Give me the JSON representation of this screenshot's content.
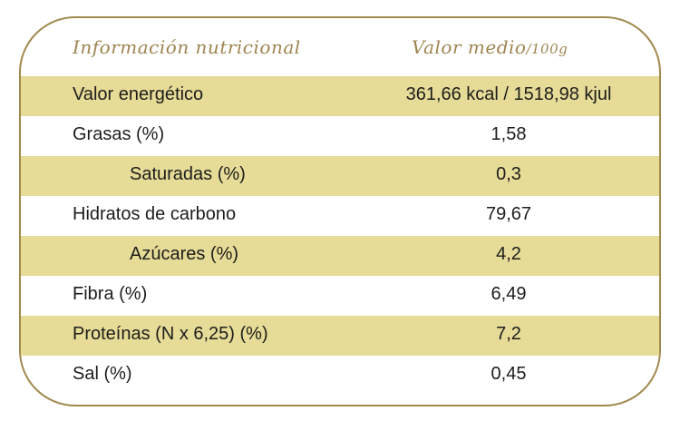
{
  "header": {
    "name_label": "Información nutricional",
    "value_label": "Valor medio",
    "value_unit": "/100g"
  },
  "rows": [
    {
      "name": "Valor energético",
      "value": "361,66 kcal / 1518,98 kjul"
    },
    {
      "name": "Grasas (%)",
      "value": "1,58"
    },
    {
      "name": "Saturadas (%)",
      "value": "0,3"
    },
    {
      "name": "Hidratos de carbono",
      "value": "79,67"
    },
    {
      "name": "Azúcares (%)",
      "value": "4,2"
    },
    {
      "name": "Fibra (%)",
      "value": "6,49"
    },
    {
      "name": "Proteínas (N x 6,25) (%)",
      "value": "7,2"
    },
    {
      "name": "Sal (%)",
      "value": "0,45"
    }
  ],
  "colors": {
    "border": "#a18a4f",
    "header_text": "#9e8550",
    "stripe": "#e6db97",
    "text": "#1d1d1b"
  }
}
